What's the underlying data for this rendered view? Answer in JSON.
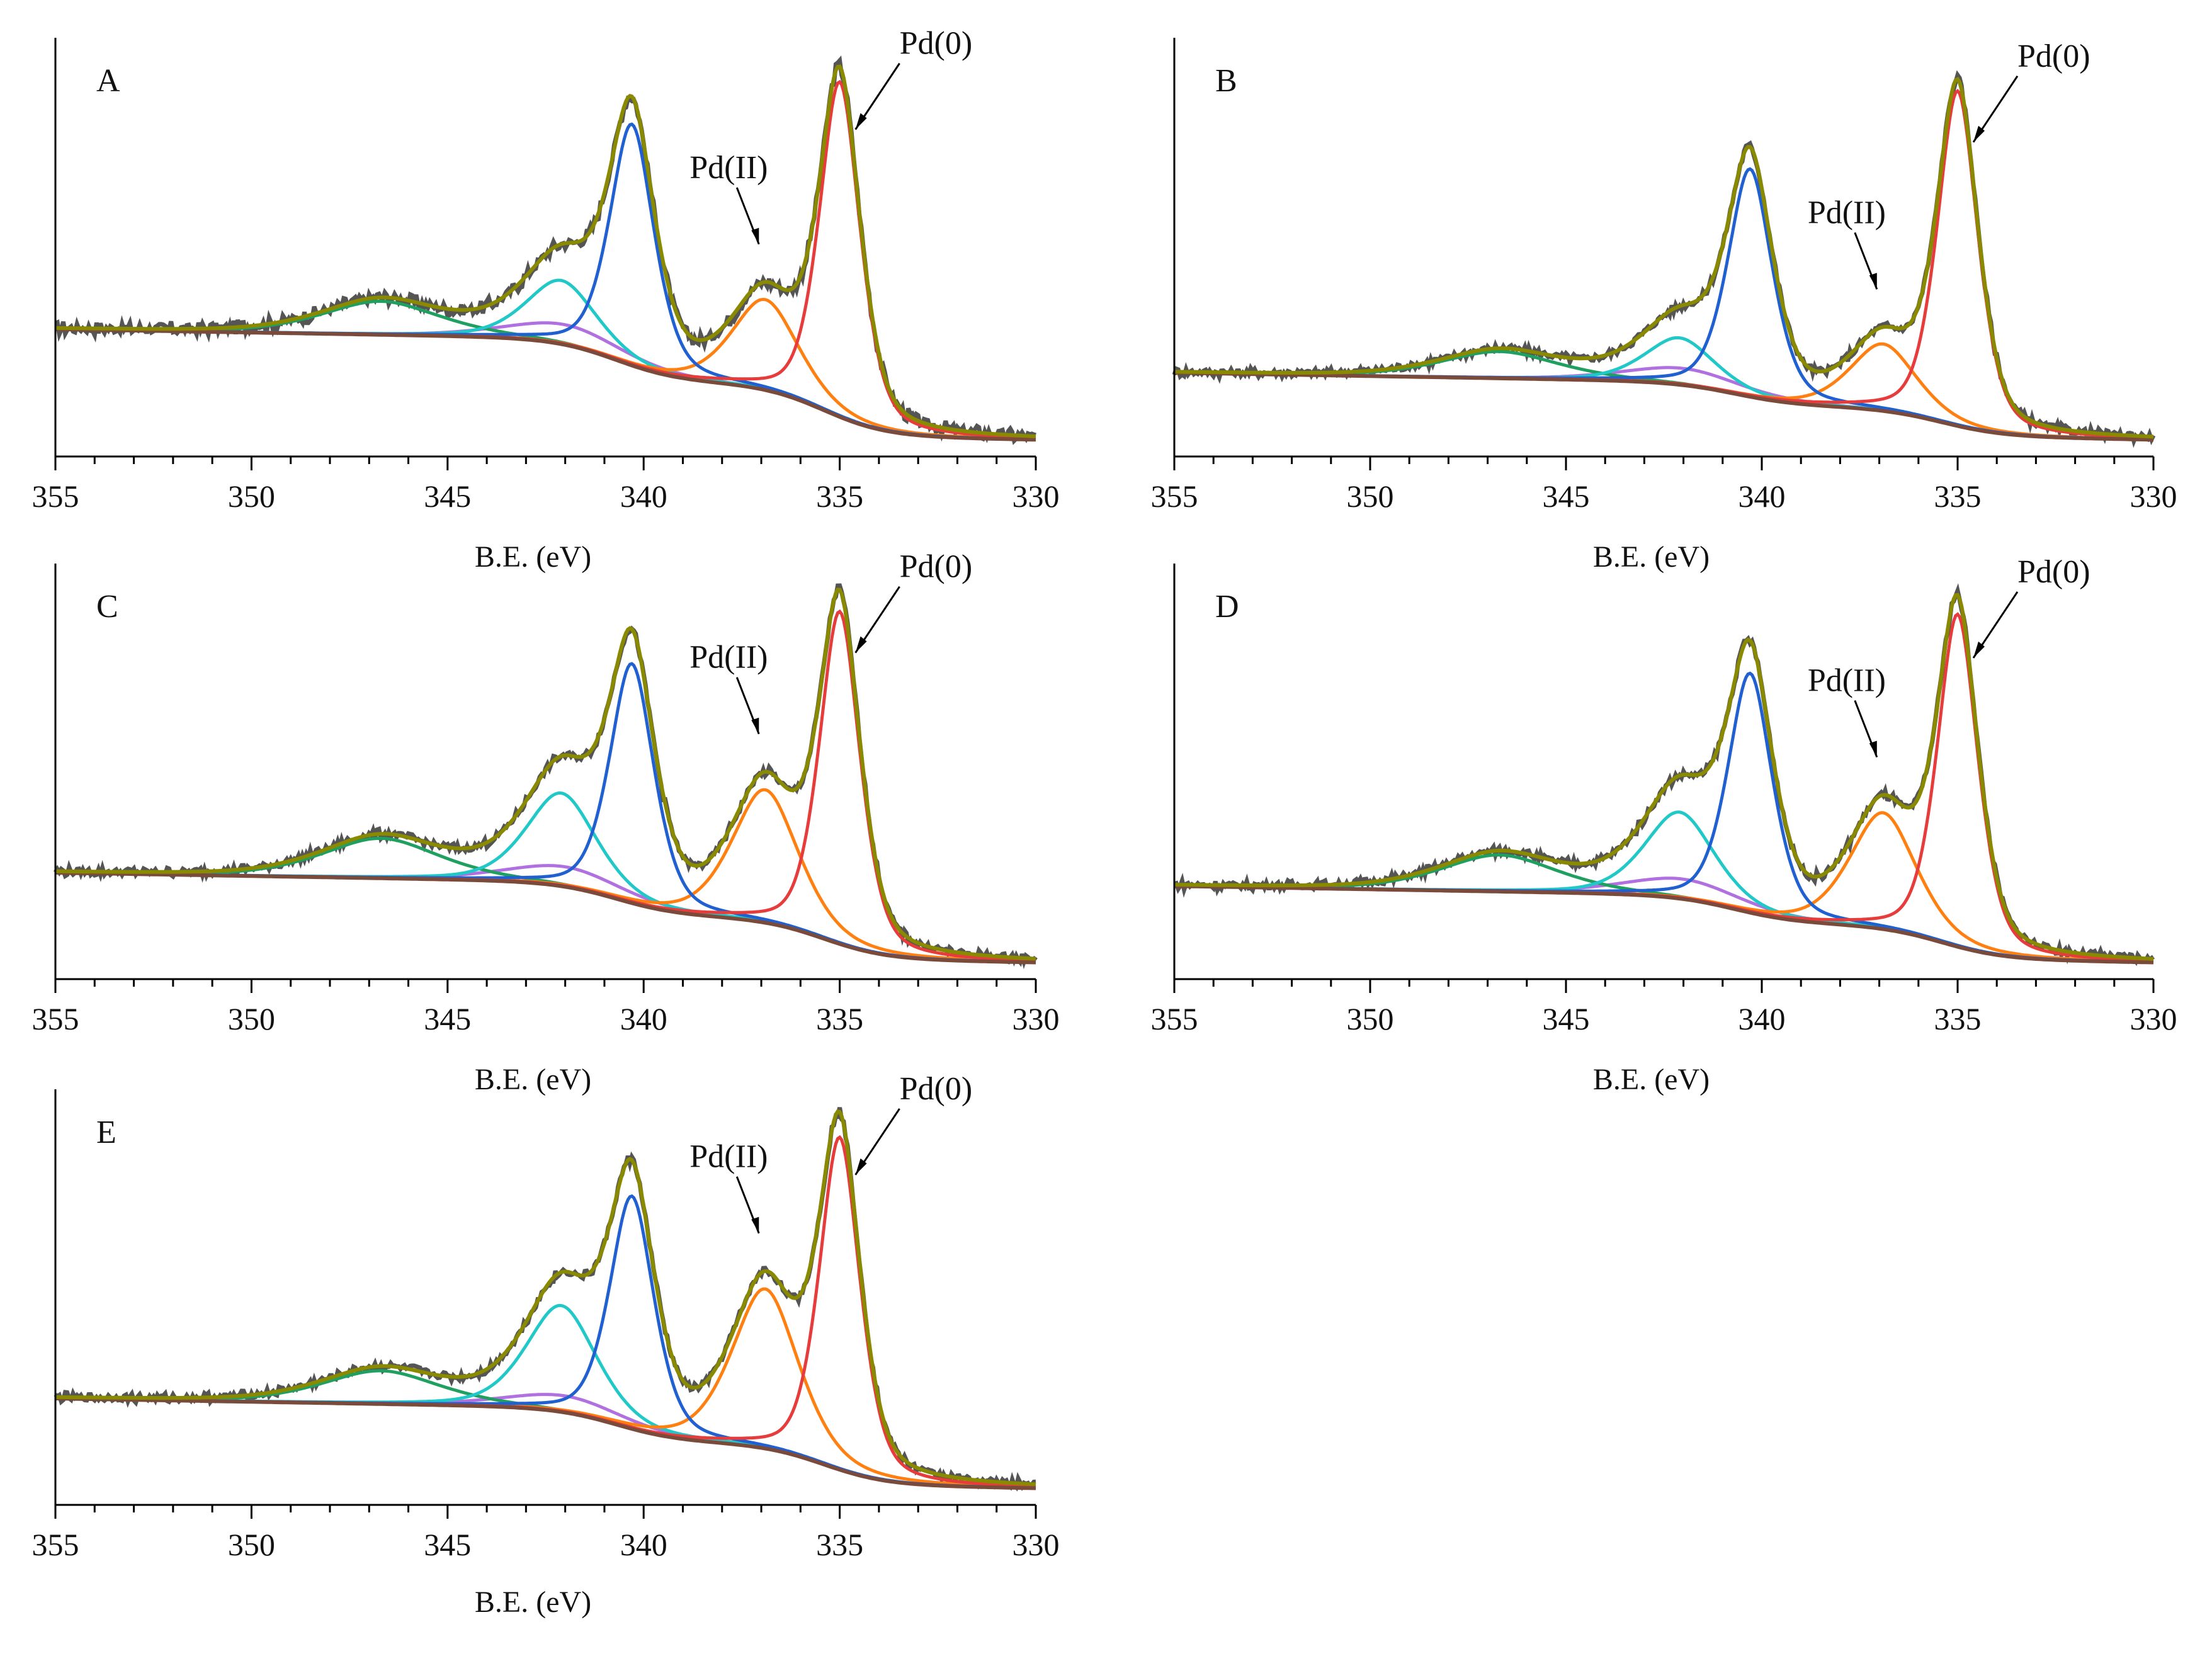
{
  "figure": {
    "description_free": true
  },
  "chart_data": [
    {
      "type": "line",
      "panel": "A",
      "xlabel": "B.E. (eV)",
      "ylabel": "",
      "xlim": [
        355,
        330
      ],
      "x_ticks": [
        355,
        350,
        345,
        340,
        335,
        330
      ],
      "annotations": [
        "Pd(0)",
        "Pd(II)"
      ],
      "peaks": {
        "pd0_32": 1.0,
        "pd0_52": 0.72,
        "pd2_32": 0.27,
        "pd2_52": 0.19,
        "sat1": 0.1,
        "sat2": 0.06
      },
      "background": {
        "low": 0.0,
        "high": 0.28
      },
      "noise": 0.018
    },
    {
      "type": "line",
      "panel": "B",
      "xlabel": "B.E. (eV)",
      "ylabel": "",
      "xlim": [
        355,
        330
      ],
      "x_ticks": [
        355,
        350,
        345,
        340,
        335,
        330
      ],
      "annotations": [
        "Pd(0)",
        "Pd(II)"
      ],
      "peaks": {
        "pd0_32": 1.0,
        "pd0_52": 0.68,
        "pd2_32": 0.2,
        "pd2_52": 0.14,
        "sat1": 0.08,
        "sat2": 0.05
      },
      "background": {
        "low": 0.0,
        "high": 0.15
      },
      "noise": 0.012
    },
    {
      "type": "line",
      "panel": "C",
      "xlabel": "B.E. (eV)",
      "ylabel": "",
      "xlim": [
        355,
        330
      ],
      "x_ticks": [
        355,
        350,
        345,
        340,
        335,
        330
      ],
      "annotations": [
        "Pd(0)",
        "Pd(II)"
      ],
      "peaks": {
        "pd0_32": 1.0,
        "pd0_52": 0.72,
        "pd2_32": 0.4,
        "pd2_52": 0.28,
        "sat1": 0.12,
        "sat2": 0.06
      },
      "background": {
        "low": 0.0,
        "high": 0.22
      },
      "noise": 0.012
    },
    {
      "type": "line",
      "panel": "D",
      "xlabel": "B.E. (eV)",
      "ylabel": "",
      "xlim": [
        355,
        330
      ],
      "x_ticks": [
        355,
        350,
        345,
        340,
        335,
        330
      ],
      "annotations": [
        "Pd(0)",
        "Pd(II)"
      ],
      "peaks": {
        "pd0_32": 1.0,
        "pd0_52": 0.72,
        "pd2_32": 0.35,
        "pd2_52": 0.26,
        "sat1": 0.11,
        "sat2": 0.06
      },
      "background": {
        "low": 0.0,
        "high": 0.18
      },
      "noise": 0.012
    },
    {
      "type": "line",
      "panel": "E",
      "xlabel": "B.E. (eV)",
      "ylabel": "",
      "xlim": [
        355,
        330
      ],
      "x_ticks": [
        355,
        350,
        345,
        340,
        335,
        330
      ],
      "annotations": [
        "Pd(0)",
        "Pd(II)"
      ],
      "peaks": {
        "pd0_32": 1.0,
        "pd0_52": 0.7,
        "pd2_32": 0.48,
        "pd2_52": 0.32,
        "sat1": 0.1,
        "sat2": 0.05
      },
      "background": {
        "low": 0.0,
        "high": 0.22
      },
      "noise": 0.012
    }
  ],
  "series_colors": {
    "raw": "#555555",
    "envelope": "#8a8a00",
    "pd0_32": "#e63c3c",
    "pd0_52": "#2060d0",
    "pd2_32": "#ff8010",
    "pd2_52": "#20c8c8",
    "sat1": "#20a060",
    "sat2": "#b070e0",
    "background": "#7a4a3a"
  }
}
